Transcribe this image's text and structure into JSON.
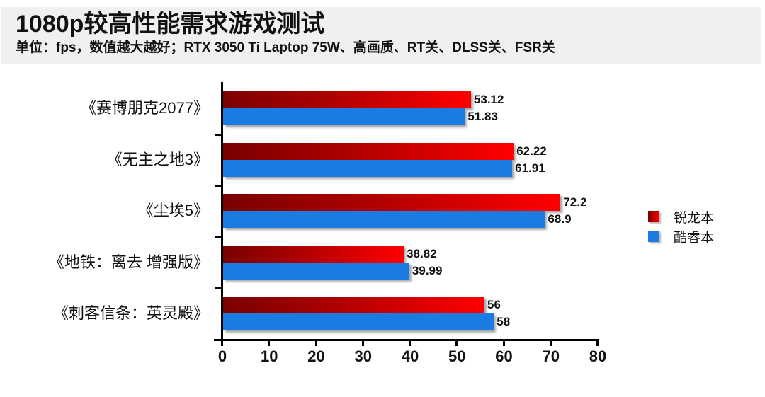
{
  "header": {
    "title": "1080p较高性能需求游戏测试",
    "subtitle": "单位：fps，数值越大越好；RTX 3050 Ti Laptop 75W、高画质、RT关、DLSS关、FSR关"
  },
  "legend": {
    "items": [
      {
        "label": "锐龙本",
        "color": "#d00000"
      },
      {
        "label": "酷睿本",
        "color": "#1a7be0"
      }
    ]
  },
  "axis": {
    "x_ticks": [
      "0",
      "10",
      "20",
      "30",
      "40",
      "50",
      "60",
      "70",
      "80"
    ]
  },
  "categories": [
    {
      "label": "《赛博朋克2077》",
      "red_label": "53.12",
      "blue_label": "51.83"
    },
    {
      "label": "《无主之地3》",
      "red_label": "62.22",
      "blue_label": "61.91"
    },
    {
      "label": "《尘埃5》",
      "red_label": "72.2",
      "blue_label": "68.9"
    },
    {
      "label": "《地铁：离去 增强版》",
      "red_label": "38.82",
      "blue_label": "39.99"
    },
    {
      "label": "《刺客信条：英灵殿》",
      "red_label": "56",
      "blue_label": "58"
    }
  ],
  "chart_data": {
    "type": "bar",
    "orientation": "horizontal",
    "title": "1080p较高性能需求游戏测试",
    "subtitle": "单位：fps，数值越大越好；RTX 3050 Ti Laptop 75W、高画质、RT关、DLSS关、FSR关",
    "categories": [
      "《赛博朋克2077》",
      "《无主之地3》",
      "《尘埃5》",
      "《地铁：离去 增强版》",
      "《刺客信条：英灵殿》"
    ],
    "series": [
      {
        "name": "锐龙本",
        "color": "#d00000",
        "values": [
          53.12,
          62.22,
          72.2,
          38.82,
          56
        ]
      },
      {
        "name": "酷睿本",
        "color": "#1a7be0",
        "values": [
          51.83,
          61.91,
          68.9,
          39.99,
          58
        ]
      }
    ],
    "xlabel": "",
    "ylabel": "",
    "xlim": [
      0,
      80
    ],
    "x_ticks": [
      0,
      10,
      20,
      30,
      40,
      50,
      60,
      70,
      80
    ],
    "grid": false,
    "legend_position": "right",
    "data_labels": true
  }
}
